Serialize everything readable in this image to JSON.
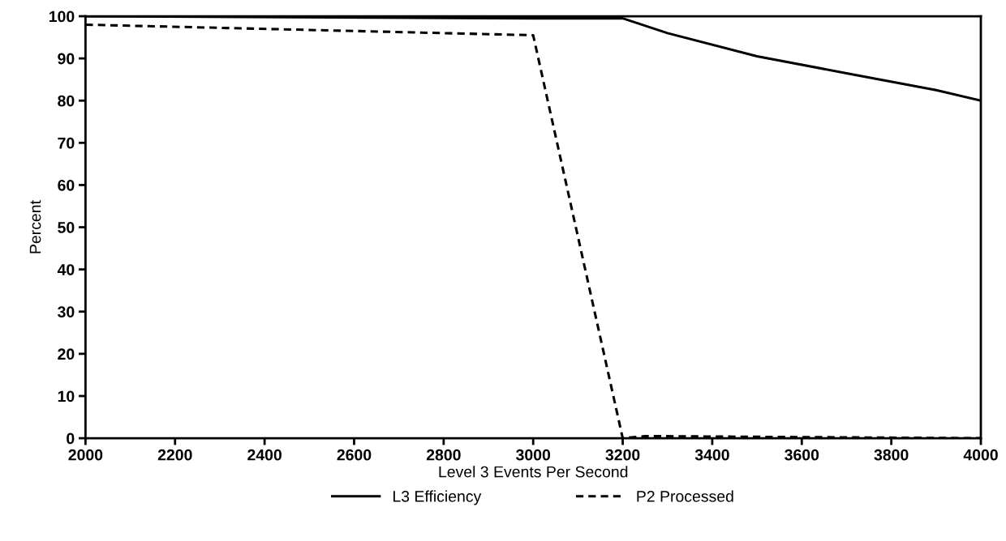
{
  "chart_data": {
    "type": "line",
    "xlabel": "Level 3 Events Per Second",
    "ylabel": "Percent",
    "xlim": [
      2000,
      4000
    ],
    "xticks": [
      2000,
      2200,
      2400,
      2600,
      2800,
      3000,
      3200,
      3400,
      3600,
      3800,
      4000
    ],
    "ylim": [
      0,
      100
    ],
    "yticks": [
      0,
      10,
      20,
      30,
      40,
      50,
      60,
      70,
      80,
      90,
      100
    ],
    "grid": false,
    "legend": "bottom",
    "marker": "none",
    "series": [
      {
        "name": "L3 Efficiency",
        "color": "#000000",
        "line_style": "solid",
        "x": [
          2000,
          3000,
          3200,
          3300,
          3500,
          3700,
          3900,
          4000
        ],
        "values": [
          100,
          99.5,
          99.5,
          96,
          90.5,
          86.5,
          82.5,
          80
        ]
      },
      {
        "name": "P2 Processed",
        "color": "#000000",
        "line_style": "dashed",
        "x": [
          2000,
          3000,
          3200,
          3250,
          4000
        ],
        "values": [
          98,
          95.5,
          0,
          0.5,
          0
        ]
      }
    ]
  }
}
